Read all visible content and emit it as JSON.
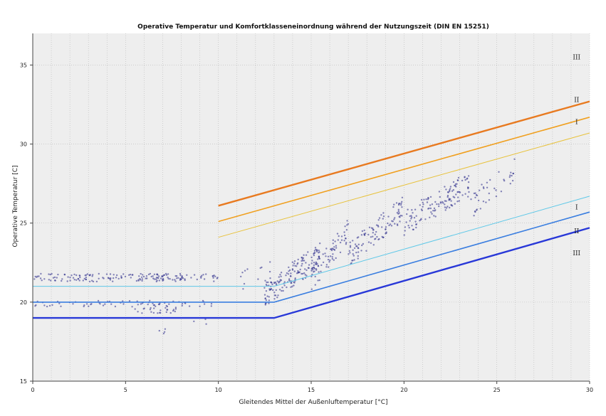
{
  "chart_data": {
    "type": "scatter",
    "title": "Operative Temperatur und Komfortklasseneinordnung während der Nutzungszeit (DIN EN 15251)",
    "xlabel": "Gleitendes Mittel der Außenluftemperatur [°C]",
    "ylabel": "Operative Temperatur [C]",
    "xlim": [
      0,
      30
    ],
    "ylim": [
      15,
      37
    ],
    "xticks": [
      0,
      5,
      10,
      15,
      20,
      25,
      30
    ],
    "yticks": [
      15,
      20,
      25,
      30,
      35
    ],
    "grid": true,
    "plot_background": "#eeeeee",
    "upper_limits": [
      {
        "label": "I",
        "color": "#e8c23c",
        "points": [
          [
            10,
            24.1
          ],
          [
            30,
            30.7
          ]
        ]
      },
      {
        "label": "II",
        "color": "#f0a020",
        "points": [
          [
            10,
            25.1
          ],
          [
            30,
            31.7
          ]
        ]
      },
      {
        "label": "III",
        "color": "#e87a20",
        "points": [
          [
            10,
            26.1
          ],
          [
            30,
            32.7
          ]
        ]
      }
    ],
    "lower_limits": [
      {
        "label": "I",
        "color": "#5ec8e8",
        "points": [
          [
            0,
            21.0
          ],
          [
            13,
            21.0
          ],
          [
            30,
            26.7
          ]
        ]
      },
      {
        "label": "II",
        "color": "#3a7ee0",
        "points": [
          [
            0,
            20.0
          ],
          [
            13,
            20.0
          ],
          [
            30,
            25.7
          ]
        ]
      },
      {
        "label": "III",
        "color": "#2838d8",
        "points": [
          [
            0,
            19.0
          ],
          [
            13,
            19.0
          ],
          [
            30,
            24.7
          ]
        ]
      }
    ],
    "class_labels_right": [
      {
        "text": "III",
        "y": 35.5
      },
      {
        "text": "II",
        "y": 32.8
      },
      {
        "text": "I",
        "y": 31.4
      },
      {
        "text": "I",
        "y": 26.0
      },
      {
        "text": "II",
        "y": 24.5
      },
      {
        "text": "III",
        "y": 23.1
      }
    ],
    "series": [
      {
        "marker_color": "#2a2a8a",
        "clusters": [
          {
            "x": [
              0,
              10
            ],
            "y": [
              21.3,
              21.8
            ],
            "n": 170
          },
          {
            "x": [
              0,
              10
            ],
            "y": [
              19.7,
              20.1
            ],
            "n": 55
          },
          {
            "x": [
              5.5,
              7.8
            ],
            "y": [
              19.3,
              20.0
            ],
            "n": 35
          },
          {
            "x": [
              6.5,
              7.5
            ],
            "y": [
              18.0,
              18.6
            ],
            "n": 4
          },
          {
            "x": [
              8.5,
              9.5
            ],
            "y": [
              18.5,
              19.0
            ],
            "n": 3
          },
          {
            "x": [
              11,
              13
            ],
            "y": [
              21.3,
              21.8
            ],
            "n": 15
          },
          {
            "x": [
              12.5,
              15.5
            ],
            "y": [
              20.5,
              23.0
            ],
            "n": 160
          },
          {
            "x": [
              15,
              17
            ],
            "y": [
              21.5,
              24.5
            ],
            "n": 70
          },
          {
            "x": [
              17,
              20
            ],
            "y": [
              23.0,
              26.0
            ],
            "n": 110
          },
          {
            "x": [
              20,
              23.5
            ],
            "y": [
              25.0,
              27.5
            ],
            "n": 130
          },
          {
            "x": [
              23.5,
              26
            ],
            "y": [
              26.0,
              28.5
            ],
            "n": 40
          }
        ]
      }
    ]
  }
}
